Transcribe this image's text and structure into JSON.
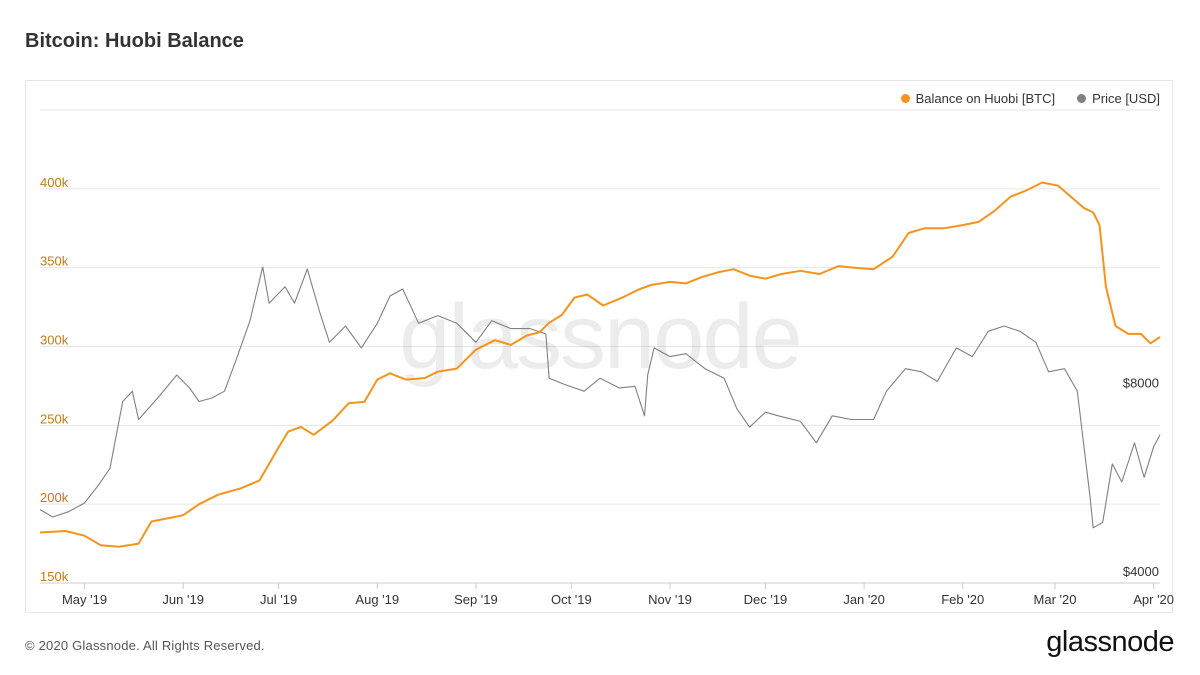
{
  "header": {
    "title": "Bitcoin: Huobi Balance"
  },
  "footer": {
    "copyright": "© 2020 Glassnode. All Rights Reserved.",
    "logo_text": "glassnode"
  },
  "watermark": "glassnode",
  "colors": {
    "balance": "#f7931a",
    "price": "#808080",
    "grid": "#e6e6e6",
    "left_tick": "#c47a17",
    "right_tick": "#333333"
  },
  "chart_data": {
    "type": "line",
    "title": "Bitcoin: Huobi Balance",
    "grid": true,
    "legend_position": "top-right",
    "x_range": [
      "2019-04-17",
      "2020-04-03"
    ],
    "x_ticks": [
      {
        "date": "2019-05-01",
        "label": "May '19"
      },
      {
        "date": "2019-06-01",
        "label": "Jun '19"
      },
      {
        "date": "2019-07-01",
        "label": "Jul '19"
      },
      {
        "date": "2019-08-01",
        "label": "Aug '19"
      },
      {
        "date": "2019-09-01",
        "label": "Sep '19"
      },
      {
        "date": "2019-10-01",
        "label": "Oct '19"
      },
      {
        "date": "2019-11-01",
        "label": "Nov '19"
      },
      {
        "date": "2019-12-01",
        "label": "Dec '19"
      },
      {
        "date": "2020-01-01",
        "label": "Jan '20"
      },
      {
        "date": "2020-02-01",
        "label": "Feb '20"
      },
      {
        "date": "2020-03-01",
        "label": "Mar '20"
      },
      {
        "date": "2020-04-01",
        "label": "Apr '20"
      }
    ],
    "y_left": {
      "range": [
        150000,
        450000
      ],
      "ticks": [
        {
          "value": 150000,
          "label": "150k"
        },
        {
          "value": 200000,
          "label": "200k"
        },
        {
          "value": 250000,
          "label": "250k"
        },
        {
          "value": 300000,
          "label": "300k"
        },
        {
          "value": 350000,
          "label": "350k"
        },
        {
          "value": 400000,
          "label": "400k"
        }
      ]
    },
    "y_right": {
      "scale": "log",
      "range": [
        4000,
        22800
      ],
      "ticks": [
        {
          "value": 4000,
          "label": "$4000"
        },
        {
          "value": 8000,
          "label": "$8000"
        }
      ]
    },
    "series": [
      {
        "name": "Balance on Huobi [BTC]",
        "axis": "left",
        "points": [
          [
            "2019-04-17",
            182000
          ],
          [
            "2019-04-25",
            183000
          ],
          [
            "2019-05-01",
            180000
          ],
          [
            "2019-05-06",
            174000
          ],
          [
            "2019-05-12",
            173000
          ],
          [
            "2019-05-18",
            175000
          ],
          [
            "2019-05-22",
            189000
          ],
          [
            "2019-05-27",
            191000
          ],
          [
            "2019-06-01",
            193000
          ],
          [
            "2019-06-06",
            200000
          ],
          [
            "2019-06-12",
            206000
          ],
          [
            "2019-06-19",
            210000
          ],
          [
            "2019-06-25",
            215000
          ],
          [
            "2019-07-01",
            236000
          ],
          [
            "2019-07-04",
            246000
          ],
          [
            "2019-07-08",
            249000
          ],
          [
            "2019-07-12",
            244000
          ],
          [
            "2019-07-18",
            253000
          ],
          [
            "2019-07-23",
            264000
          ],
          [
            "2019-07-28",
            265000
          ],
          [
            "2019-08-01",
            279000
          ],
          [
            "2019-08-05",
            283000
          ],
          [
            "2019-08-10",
            279000
          ],
          [
            "2019-08-16",
            280000
          ],
          [
            "2019-08-20",
            284000
          ],
          [
            "2019-08-26",
            286000
          ],
          [
            "2019-09-01",
            298000
          ],
          [
            "2019-09-07",
            304000
          ],
          [
            "2019-09-12",
            301000
          ],
          [
            "2019-09-17",
            307000
          ],
          [
            "2019-09-21",
            309000
          ],
          [
            "2019-09-24",
            315000
          ],
          [
            "2019-09-28",
            320000
          ],
          [
            "2019-10-02",
            331000
          ],
          [
            "2019-10-06",
            333000
          ],
          [
            "2019-10-11",
            326000
          ],
          [
            "2019-10-17",
            331000
          ],
          [
            "2019-10-22",
            336000
          ],
          [
            "2019-10-26",
            339000
          ],
          [
            "2019-11-01",
            341000
          ],
          [
            "2019-11-06",
            340000
          ],
          [
            "2019-11-11",
            344000
          ],
          [
            "2019-11-16",
            347000
          ],
          [
            "2019-11-21",
            349000
          ],
          [
            "2019-11-26",
            345000
          ],
          [
            "2019-12-01",
            343000
          ],
          [
            "2019-12-06",
            346000
          ],
          [
            "2019-12-12",
            348000
          ],
          [
            "2019-12-18",
            346000
          ],
          [
            "2019-12-24",
            351000
          ],
          [
            "2019-12-29",
            350000
          ],
          [
            "2020-01-04",
            349000
          ],
          [
            "2020-01-10",
            357000
          ],
          [
            "2020-01-15",
            372000
          ],
          [
            "2020-01-20",
            375000
          ],
          [
            "2020-01-26",
            375000
          ],
          [
            "2020-02-01",
            377000
          ],
          [
            "2020-02-06",
            379000
          ],
          [
            "2020-02-11",
            386000
          ],
          [
            "2020-02-16",
            395000
          ],
          [
            "2020-02-21",
            399000
          ],
          [
            "2020-02-26",
            404000
          ],
          [
            "2020-03-02",
            402000
          ],
          [
            "2020-03-06",
            395000
          ],
          [
            "2020-03-10",
            388000
          ],
          [
            "2020-03-13",
            385000
          ],
          [
            "2020-03-15",
            377000
          ],
          [
            "2020-03-17",
            338000
          ],
          [
            "2020-03-20",
            313000
          ],
          [
            "2020-03-24",
            308000
          ],
          [
            "2020-03-28",
            308000
          ],
          [
            "2020-03-31",
            302000
          ],
          [
            "2020-04-03",
            306000
          ]
        ]
      },
      {
        "name": "Price [USD]",
        "axis": "right",
        "points": [
          [
            "2019-04-17",
            5240
          ],
          [
            "2019-04-21",
            5100
          ],
          [
            "2019-04-26",
            5200
          ],
          [
            "2019-05-01",
            5370
          ],
          [
            "2019-05-05",
            5700
          ],
          [
            "2019-05-09",
            6100
          ],
          [
            "2019-05-13",
            7800
          ],
          [
            "2019-05-16",
            8100
          ],
          [
            "2019-05-18",
            7300
          ],
          [
            "2019-05-24",
            7900
          ],
          [
            "2019-05-30",
            8600
          ],
          [
            "2019-06-03",
            8200
          ],
          [
            "2019-06-06",
            7800
          ],
          [
            "2019-06-10",
            7900
          ],
          [
            "2019-06-14",
            8100
          ],
          [
            "2019-06-18",
            9200
          ],
          [
            "2019-06-22",
            10500
          ],
          [
            "2019-06-26",
            12800
          ],
          [
            "2019-06-28",
            11200
          ],
          [
            "2019-07-03",
            11900
          ],
          [
            "2019-07-06",
            11200
          ],
          [
            "2019-07-10",
            12700
          ],
          [
            "2019-07-14",
            10800
          ],
          [
            "2019-07-17",
            9700
          ],
          [
            "2019-07-22",
            10300
          ],
          [
            "2019-07-27",
            9500
          ],
          [
            "2019-08-01",
            10400
          ],
          [
            "2019-08-05",
            11500
          ],
          [
            "2019-08-09",
            11800
          ],
          [
            "2019-08-14",
            10400
          ],
          [
            "2019-08-20",
            10700
          ],
          [
            "2019-08-26",
            10400
          ],
          [
            "2019-09-01",
            9700
          ],
          [
            "2019-09-06",
            10500
          ],
          [
            "2019-09-12",
            10200
          ],
          [
            "2019-09-18",
            10200
          ],
          [
            "2019-09-23",
            10000
          ],
          [
            "2019-09-24",
            8500
          ],
          [
            "2019-09-29",
            8300
          ],
          [
            "2019-10-05",
            8100
          ],
          [
            "2019-10-10",
            8500
          ],
          [
            "2019-10-16",
            8200
          ],
          [
            "2019-10-21",
            8250
          ],
          [
            "2019-10-24",
            7400
          ],
          [
            "2019-10-25",
            8600
          ],
          [
            "2019-10-27",
            9500
          ],
          [
            "2019-11-01",
            9200
          ],
          [
            "2019-11-06",
            9300
          ],
          [
            "2019-11-12",
            8800
          ],
          [
            "2019-11-18",
            8500
          ],
          [
            "2019-11-22",
            7600
          ],
          [
            "2019-11-26",
            7100
          ],
          [
            "2019-12-01",
            7500
          ],
          [
            "2019-12-05",
            7400
          ],
          [
            "2019-12-12",
            7250
          ],
          [
            "2019-12-17",
            6700
          ],
          [
            "2019-12-22",
            7400
          ],
          [
            "2019-12-28",
            7300
          ],
          [
            "2020-01-04",
            7300
          ],
          [
            "2020-01-08",
            8100
          ],
          [
            "2020-01-14",
            8800
          ],
          [
            "2020-01-19",
            8700
          ],
          [
            "2020-01-24",
            8400
          ],
          [
            "2020-01-30",
            9500
          ],
          [
            "2020-02-04",
            9200
          ],
          [
            "2020-02-09",
            10100
          ],
          [
            "2020-02-14",
            10300
          ],
          [
            "2020-02-19",
            10100
          ],
          [
            "2020-02-24",
            9700
          ],
          [
            "2020-02-28",
            8700
          ],
          [
            "2020-03-04",
            8800
          ],
          [
            "2020-03-08",
            8100
          ],
          [
            "2020-03-12",
            5500
          ],
          [
            "2020-03-13",
            4900
          ],
          [
            "2020-03-16",
            5000
          ],
          [
            "2020-03-19",
            6200
          ],
          [
            "2020-03-22",
            5800
          ],
          [
            "2020-03-26",
            6700
          ],
          [
            "2020-03-29",
            5900
          ],
          [
            "2020-04-01",
            6600
          ],
          [
            "2020-04-03",
            6900
          ]
        ]
      }
    ]
  }
}
